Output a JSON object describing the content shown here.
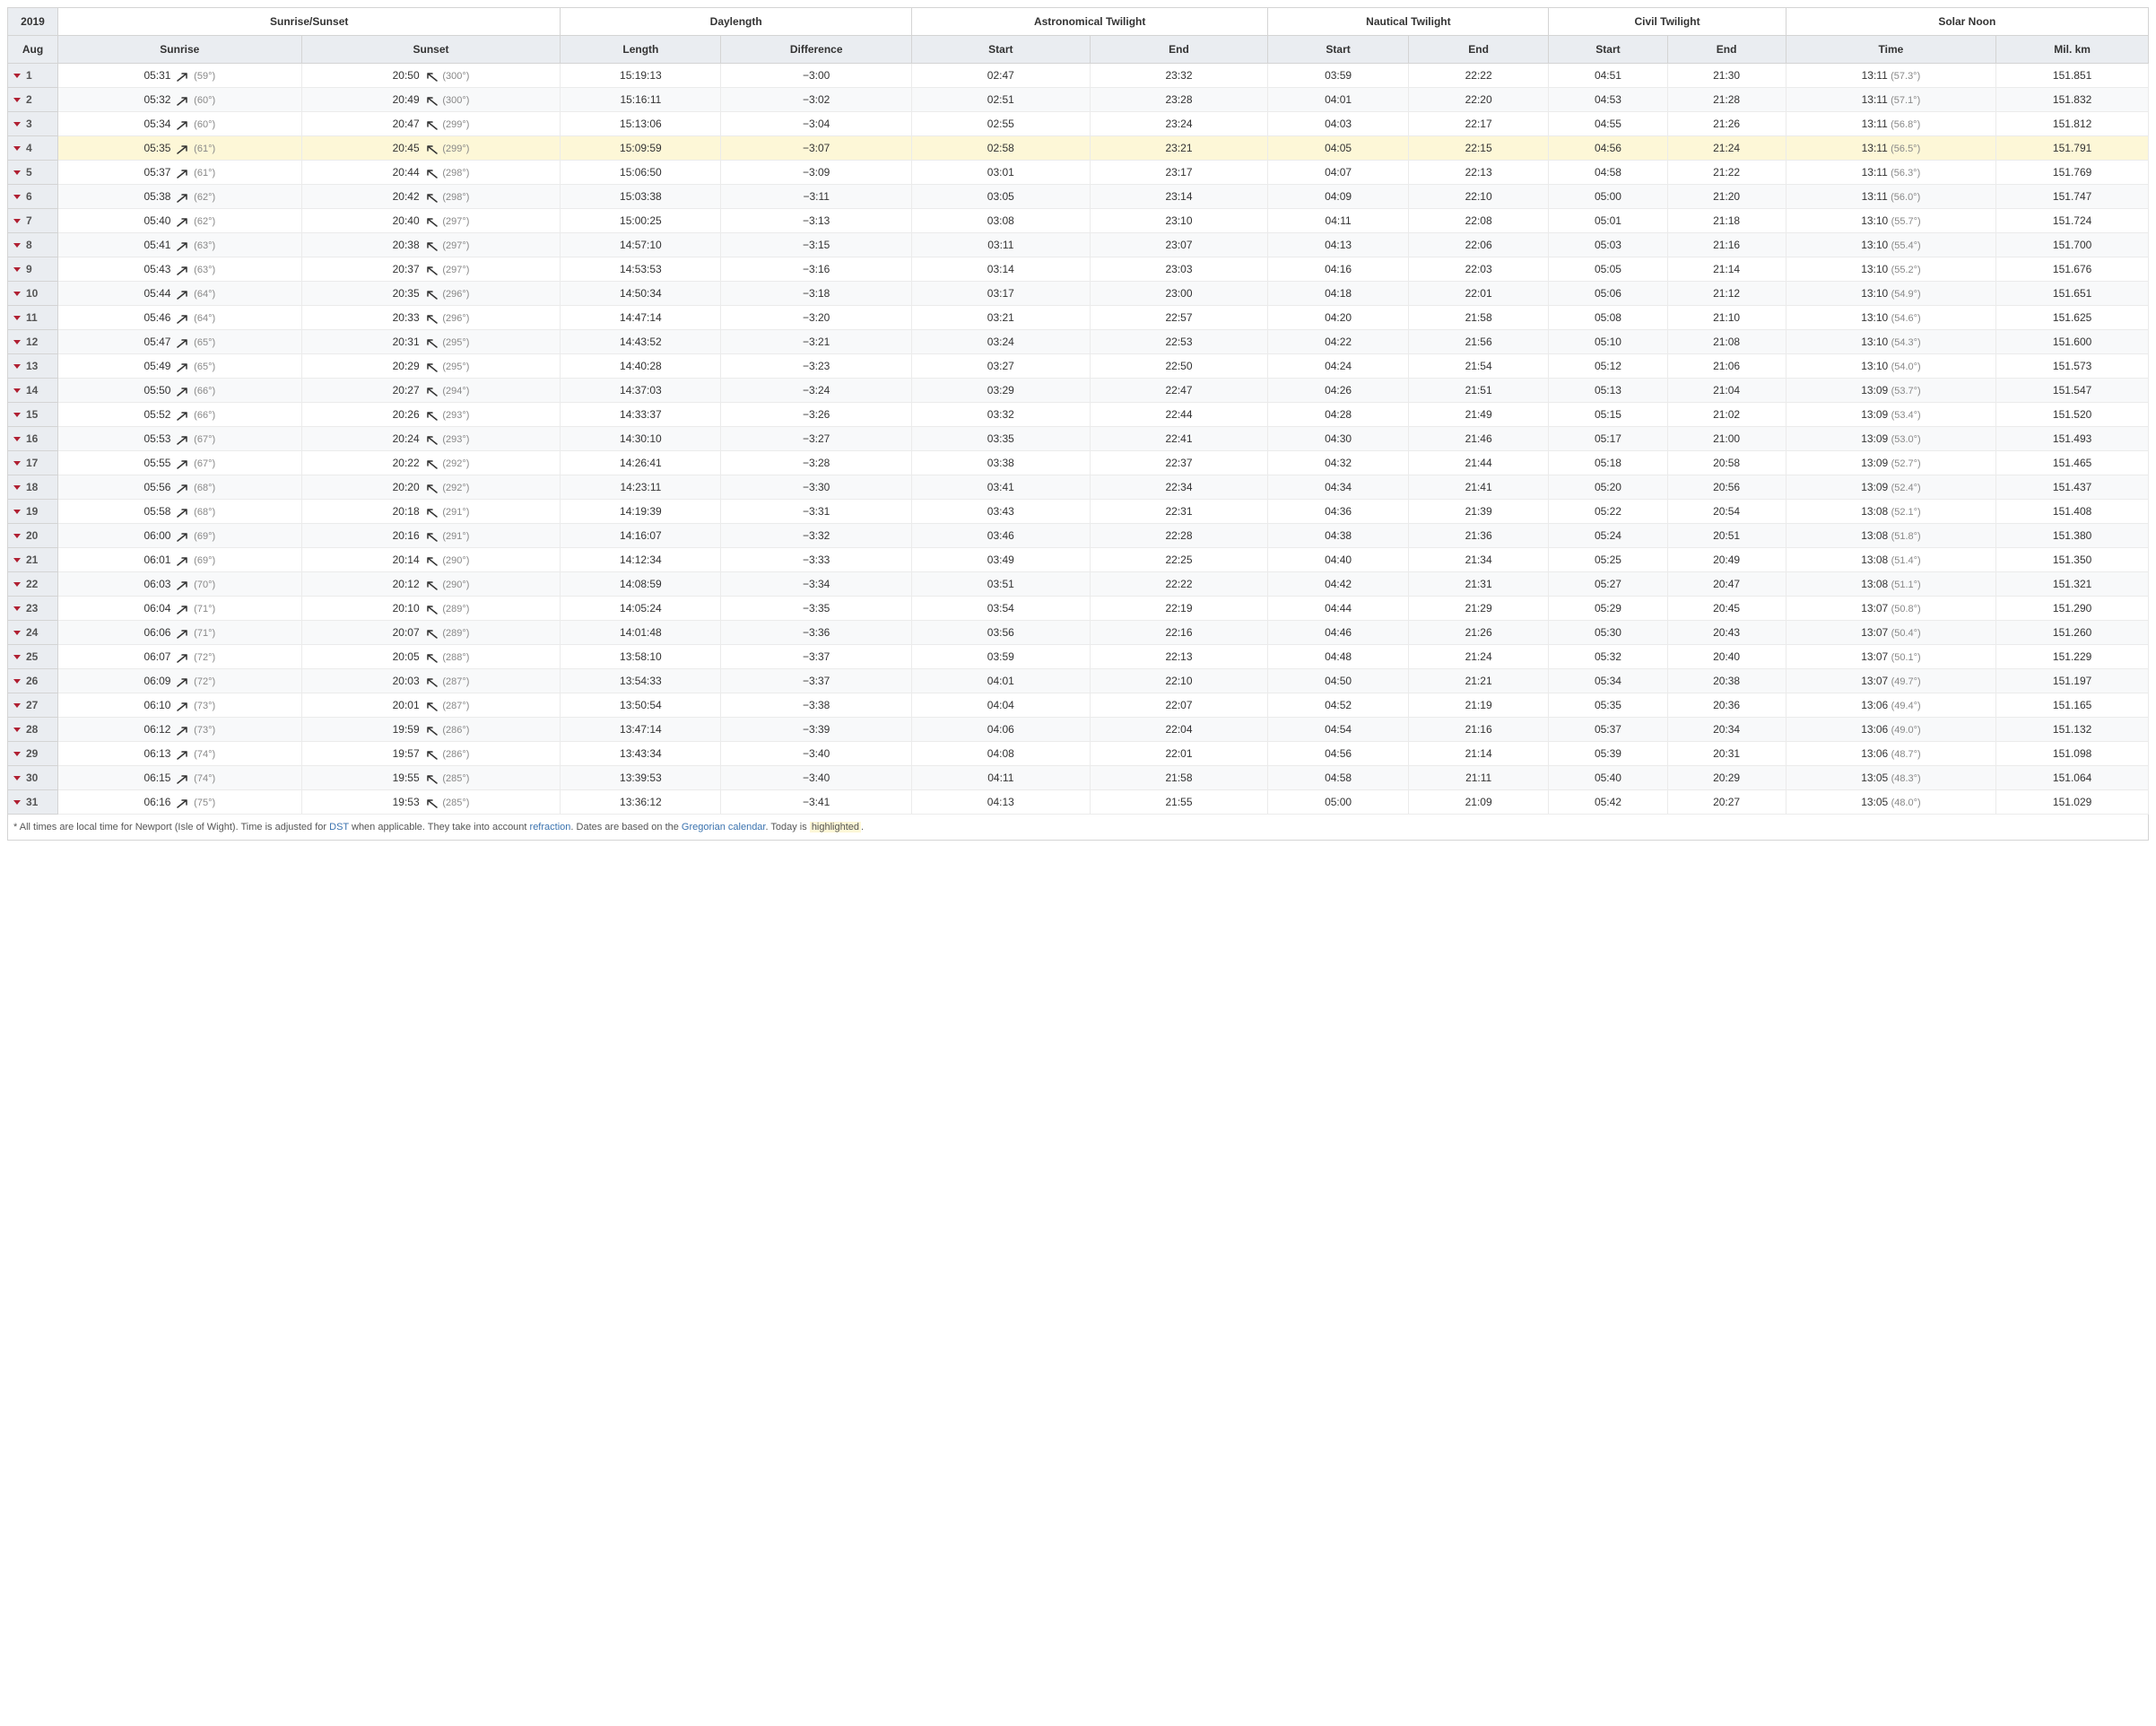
{
  "year": "2019",
  "month": "Aug",
  "headers": {
    "sunriseSunset": "Sunrise/Sunset",
    "daylength": "Daylength",
    "astroTwilight": "Astronomical Twilight",
    "nauticalTwilight": "Nautical Twilight",
    "civilTwilight": "Civil Twilight",
    "solarNoon": "Solar Noon",
    "sunrise": "Sunrise",
    "sunset": "Sunset",
    "length": "Length",
    "difference": "Difference",
    "start": "Start",
    "end": "End",
    "time": "Time",
    "milKm": "Mil. km"
  },
  "footnote": {
    "t1": "* All times are local time for Newport (Isle of Wight). Time is adjusted for ",
    "dst": "DST",
    "t2": " when applicable. They take into account ",
    "refraction": "refraction",
    "t3": ". Dates are based on the ",
    "gregorian": "Gregorian calendar",
    "t4": ". Today is ",
    "highlighted": "highlighted",
    "t5": "."
  },
  "todayIndex": 3,
  "rows": [
    {
      "d": "1",
      "sr": "05:31",
      "srDeg": "59°",
      "ss": "20:50",
      "ssDeg": "300°",
      "len": "15:19:13",
      "diff": "−3:00",
      "as": "02:47",
      "ae": "23:32",
      "ns": "03:59",
      "ne": "22:22",
      "cs": "04:51",
      "ce": "21:30",
      "sn": "13:11",
      "snDeg": "57.3°",
      "km": "151.851"
    },
    {
      "d": "2",
      "sr": "05:32",
      "srDeg": "60°",
      "ss": "20:49",
      "ssDeg": "300°",
      "len": "15:16:11",
      "diff": "−3:02",
      "as": "02:51",
      "ae": "23:28",
      "ns": "04:01",
      "ne": "22:20",
      "cs": "04:53",
      "ce": "21:28",
      "sn": "13:11",
      "snDeg": "57.1°",
      "km": "151.832"
    },
    {
      "d": "3",
      "sr": "05:34",
      "srDeg": "60°",
      "ss": "20:47",
      "ssDeg": "299°",
      "len": "15:13:06",
      "diff": "−3:04",
      "as": "02:55",
      "ae": "23:24",
      "ns": "04:03",
      "ne": "22:17",
      "cs": "04:55",
      "ce": "21:26",
      "sn": "13:11",
      "snDeg": "56.8°",
      "km": "151.812"
    },
    {
      "d": "4",
      "sr": "05:35",
      "srDeg": "61°",
      "ss": "20:45",
      "ssDeg": "299°",
      "len": "15:09:59",
      "diff": "−3:07",
      "as": "02:58",
      "ae": "23:21",
      "ns": "04:05",
      "ne": "22:15",
      "cs": "04:56",
      "ce": "21:24",
      "sn": "13:11",
      "snDeg": "56.5°",
      "km": "151.791"
    },
    {
      "d": "5",
      "sr": "05:37",
      "srDeg": "61°",
      "ss": "20:44",
      "ssDeg": "298°",
      "len": "15:06:50",
      "diff": "−3:09",
      "as": "03:01",
      "ae": "23:17",
      "ns": "04:07",
      "ne": "22:13",
      "cs": "04:58",
      "ce": "21:22",
      "sn": "13:11",
      "snDeg": "56.3°",
      "km": "151.769"
    },
    {
      "d": "6",
      "sr": "05:38",
      "srDeg": "62°",
      "ss": "20:42",
      "ssDeg": "298°",
      "len": "15:03:38",
      "diff": "−3:11",
      "as": "03:05",
      "ae": "23:14",
      "ns": "04:09",
      "ne": "22:10",
      "cs": "05:00",
      "ce": "21:20",
      "sn": "13:11",
      "snDeg": "56.0°",
      "km": "151.747"
    },
    {
      "d": "7",
      "sr": "05:40",
      "srDeg": "62°",
      "ss": "20:40",
      "ssDeg": "297°",
      "len": "15:00:25",
      "diff": "−3:13",
      "as": "03:08",
      "ae": "23:10",
      "ns": "04:11",
      "ne": "22:08",
      "cs": "05:01",
      "ce": "21:18",
      "sn": "13:10",
      "snDeg": "55.7°",
      "km": "151.724"
    },
    {
      "d": "8",
      "sr": "05:41",
      "srDeg": "63°",
      "ss": "20:38",
      "ssDeg": "297°",
      "len": "14:57:10",
      "diff": "−3:15",
      "as": "03:11",
      "ae": "23:07",
      "ns": "04:13",
      "ne": "22:06",
      "cs": "05:03",
      "ce": "21:16",
      "sn": "13:10",
      "snDeg": "55.4°",
      "km": "151.700"
    },
    {
      "d": "9",
      "sr": "05:43",
      "srDeg": "63°",
      "ss": "20:37",
      "ssDeg": "297°",
      "len": "14:53:53",
      "diff": "−3:16",
      "as": "03:14",
      "ae": "23:03",
      "ns": "04:16",
      "ne": "22:03",
      "cs": "05:05",
      "ce": "21:14",
      "sn": "13:10",
      "snDeg": "55.2°",
      "km": "151.676"
    },
    {
      "d": "10",
      "sr": "05:44",
      "srDeg": "64°",
      "ss": "20:35",
      "ssDeg": "296°",
      "len": "14:50:34",
      "diff": "−3:18",
      "as": "03:17",
      "ae": "23:00",
      "ns": "04:18",
      "ne": "22:01",
      "cs": "05:06",
      "ce": "21:12",
      "sn": "13:10",
      "snDeg": "54.9°",
      "km": "151.651"
    },
    {
      "d": "11",
      "sr": "05:46",
      "srDeg": "64°",
      "ss": "20:33",
      "ssDeg": "296°",
      "len": "14:47:14",
      "diff": "−3:20",
      "as": "03:21",
      "ae": "22:57",
      "ns": "04:20",
      "ne": "21:58",
      "cs": "05:08",
      "ce": "21:10",
      "sn": "13:10",
      "snDeg": "54.6°",
      "km": "151.625"
    },
    {
      "d": "12",
      "sr": "05:47",
      "srDeg": "65°",
      "ss": "20:31",
      "ssDeg": "295°",
      "len": "14:43:52",
      "diff": "−3:21",
      "as": "03:24",
      "ae": "22:53",
      "ns": "04:22",
      "ne": "21:56",
      "cs": "05:10",
      "ce": "21:08",
      "sn": "13:10",
      "snDeg": "54.3°",
      "km": "151.600"
    },
    {
      "d": "13",
      "sr": "05:49",
      "srDeg": "65°",
      "ss": "20:29",
      "ssDeg": "295°",
      "len": "14:40:28",
      "diff": "−3:23",
      "as": "03:27",
      "ae": "22:50",
      "ns": "04:24",
      "ne": "21:54",
      "cs": "05:12",
      "ce": "21:06",
      "sn": "13:10",
      "snDeg": "54.0°",
      "km": "151.573"
    },
    {
      "d": "14",
      "sr": "05:50",
      "srDeg": "66°",
      "ss": "20:27",
      "ssDeg": "294°",
      "len": "14:37:03",
      "diff": "−3:24",
      "as": "03:29",
      "ae": "22:47",
      "ns": "04:26",
      "ne": "21:51",
      "cs": "05:13",
      "ce": "21:04",
      "sn": "13:09",
      "snDeg": "53.7°",
      "km": "151.547"
    },
    {
      "d": "15",
      "sr": "05:52",
      "srDeg": "66°",
      "ss": "20:26",
      "ssDeg": "293°",
      "len": "14:33:37",
      "diff": "−3:26",
      "as": "03:32",
      "ae": "22:44",
      "ns": "04:28",
      "ne": "21:49",
      "cs": "05:15",
      "ce": "21:02",
      "sn": "13:09",
      "snDeg": "53.4°",
      "km": "151.520"
    },
    {
      "d": "16",
      "sr": "05:53",
      "srDeg": "67°",
      "ss": "20:24",
      "ssDeg": "293°",
      "len": "14:30:10",
      "diff": "−3:27",
      "as": "03:35",
      "ae": "22:41",
      "ns": "04:30",
      "ne": "21:46",
      "cs": "05:17",
      "ce": "21:00",
      "sn": "13:09",
      "snDeg": "53.0°",
      "km": "151.493"
    },
    {
      "d": "17",
      "sr": "05:55",
      "srDeg": "67°",
      "ss": "20:22",
      "ssDeg": "292°",
      "len": "14:26:41",
      "diff": "−3:28",
      "as": "03:38",
      "ae": "22:37",
      "ns": "04:32",
      "ne": "21:44",
      "cs": "05:18",
      "ce": "20:58",
      "sn": "13:09",
      "snDeg": "52.7°",
      "km": "151.465"
    },
    {
      "d": "18",
      "sr": "05:56",
      "srDeg": "68°",
      "ss": "20:20",
      "ssDeg": "292°",
      "len": "14:23:11",
      "diff": "−3:30",
      "as": "03:41",
      "ae": "22:34",
      "ns": "04:34",
      "ne": "21:41",
      "cs": "05:20",
      "ce": "20:56",
      "sn": "13:09",
      "snDeg": "52.4°",
      "km": "151.437"
    },
    {
      "d": "19",
      "sr": "05:58",
      "srDeg": "68°",
      "ss": "20:18",
      "ssDeg": "291°",
      "len": "14:19:39",
      "diff": "−3:31",
      "as": "03:43",
      "ae": "22:31",
      "ns": "04:36",
      "ne": "21:39",
      "cs": "05:22",
      "ce": "20:54",
      "sn": "13:08",
      "snDeg": "52.1°",
      "km": "151.408"
    },
    {
      "d": "20",
      "sr": "06:00",
      "srDeg": "69°",
      "ss": "20:16",
      "ssDeg": "291°",
      "len": "14:16:07",
      "diff": "−3:32",
      "as": "03:46",
      "ae": "22:28",
      "ns": "04:38",
      "ne": "21:36",
      "cs": "05:24",
      "ce": "20:51",
      "sn": "13:08",
      "snDeg": "51.8°",
      "km": "151.380"
    },
    {
      "d": "21",
      "sr": "06:01",
      "srDeg": "69°",
      "ss": "20:14",
      "ssDeg": "290°",
      "len": "14:12:34",
      "diff": "−3:33",
      "as": "03:49",
      "ae": "22:25",
      "ns": "04:40",
      "ne": "21:34",
      "cs": "05:25",
      "ce": "20:49",
      "sn": "13:08",
      "snDeg": "51.4°",
      "km": "151.350"
    },
    {
      "d": "22",
      "sr": "06:03",
      "srDeg": "70°",
      "ss": "20:12",
      "ssDeg": "290°",
      "len": "14:08:59",
      "diff": "−3:34",
      "as": "03:51",
      "ae": "22:22",
      "ns": "04:42",
      "ne": "21:31",
      "cs": "05:27",
      "ce": "20:47",
      "sn": "13:08",
      "snDeg": "51.1°",
      "km": "151.321"
    },
    {
      "d": "23",
      "sr": "06:04",
      "srDeg": "71°",
      "ss": "20:10",
      "ssDeg": "289°",
      "len": "14:05:24",
      "diff": "−3:35",
      "as": "03:54",
      "ae": "22:19",
      "ns": "04:44",
      "ne": "21:29",
      "cs": "05:29",
      "ce": "20:45",
      "sn": "13:07",
      "snDeg": "50.8°",
      "km": "151.290"
    },
    {
      "d": "24",
      "sr": "06:06",
      "srDeg": "71°",
      "ss": "20:07",
      "ssDeg": "289°",
      "len": "14:01:48",
      "diff": "−3:36",
      "as": "03:56",
      "ae": "22:16",
      "ns": "04:46",
      "ne": "21:26",
      "cs": "05:30",
      "ce": "20:43",
      "sn": "13:07",
      "snDeg": "50.4°",
      "km": "151.260"
    },
    {
      "d": "25",
      "sr": "06:07",
      "srDeg": "72°",
      "ss": "20:05",
      "ssDeg": "288°",
      "len": "13:58:10",
      "diff": "−3:37",
      "as": "03:59",
      "ae": "22:13",
      "ns": "04:48",
      "ne": "21:24",
      "cs": "05:32",
      "ce": "20:40",
      "sn": "13:07",
      "snDeg": "50.1°",
      "km": "151.229"
    },
    {
      "d": "26",
      "sr": "06:09",
      "srDeg": "72°",
      "ss": "20:03",
      "ssDeg": "287°",
      "len": "13:54:33",
      "diff": "−3:37",
      "as": "04:01",
      "ae": "22:10",
      "ns": "04:50",
      "ne": "21:21",
      "cs": "05:34",
      "ce": "20:38",
      "sn": "13:07",
      "snDeg": "49.7°",
      "km": "151.197"
    },
    {
      "d": "27",
      "sr": "06:10",
      "srDeg": "73°",
      "ss": "20:01",
      "ssDeg": "287°",
      "len": "13:50:54",
      "diff": "−3:38",
      "as": "04:04",
      "ae": "22:07",
      "ns": "04:52",
      "ne": "21:19",
      "cs": "05:35",
      "ce": "20:36",
      "sn": "13:06",
      "snDeg": "49.4°",
      "km": "151.165"
    },
    {
      "d": "28",
      "sr": "06:12",
      "srDeg": "73°",
      "ss": "19:59",
      "ssDeg": "286°",
      "len": "13:47:14",
      "diff": "−3:39",
      "as": "04:06",
      "ae": "22:04",
      "ns": "04:54",
      "ne": "21:16",
      "cs": "05:37",
      "ce": "20:34",
      "sn": "13:06",
      "snDeg": "49.0°",
      "km": "151.132"
    },
    {
      "d": "29",
      "sr": "06:13",
      "srDeg": "74°",
      "ss": "19:57",
      "ssDeg": "286°",
      "len": "13:43:34",
      "diff": "−3:40",
      "as": "04:08",
      "ae": "22:01",
      "ns": "04:56",
      "ne": "21:14",
      "cs": "05:39",
      "ce": "20:31",
      "sn": "13:06",
      "snDeg": "48.7°",
      "km": "151.098"
    },
    {
      "d": "30",
      "sr": "06:15",
      "srDeg": "74°",
      "ss": "19:55",
      "ssDeg": "285°",
      "len": "13:39:53",
      "diff": "−3:40",
      "as": "04:11",
      "ae": "21:58",
      "ns": "04:58",
      "ne": "21:11",
      "cs": "05:40",
      "ce": "20:29",
      "sn": "13:05",
      "snDeg": "48.3°",
      "km": "151.064"
    },
    {
      "d": "31",
      "sr": "06:16",
      "srDeg": "75°",
      "ss": "19:53",
      "ssDeg": "285°",
      "len": "13:36:12",
      "diff": "−3:41",
      "as": "04:13",
      "ae": "21:55",
      "ns": "05:00",
      "ne": "21:09",
      "cs": "05:42",
      "ce": "20:27",
      "sn": "13:05",
      "snDeg": "48.0°",
      "km": "151.029"
    }
  ]
}
